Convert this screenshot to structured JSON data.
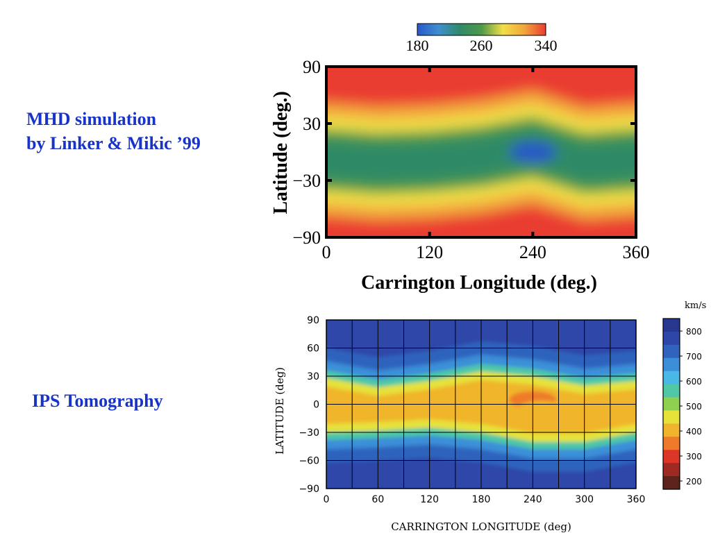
{
  "labels": {
    "mhd_line1": "MHD simulation",
    "mhd_line2": "by Linker & Mikic ’99",
    "ips": "IPS Tomography"
  },
  "chart_data": [
    {
      "type": "heatmap",
      "title": "",
      "xlabel": "Carrington Longitude (deg.)",
      "ylabel": "Latitude (deg.)",
      "xlim": [
        0,
        360
      ],
      "ylim": [
        -90,
        90
      ],
      "x_ticks": [
        0,
        120,
        240,
        360
      ],
      "y_ticks": [
        90,
        30,
        -30,
        -90
      ],
      "x_tick_labels": [
        "0",
        "120",
        "240",
        "360"
      ],
      "y_tick_labels": [
        "90",
        "30",
        "−30",
        "−90"
      ],
      "colorbar": {
        "position": "top",
        "ticks": [
          180,
          260,
          340
        ],
        "tick_labels": [
          "180",
          "260",
          "340"
        ],
        "colors": [
          "#2a57c9",
          "#3f8fcf",
          "#2f8a66",
          "#4e9a4a",
          "#f2df46",
          "#f2a53c",
          "#ea3d30"
        ]
      },
      "features": {
        "slow_belt_center_lat": [
          {
            "lon": 0,
            "lat": -8
          },
          {
            "lon": 60,
            "lat": -12
          },
          {
            "lon": 120,
            "lat": -10
          },
          {
            "lon": 180,
            "lat": -5
          },
          {
            "lon": 240,
            "lat": 5
          },
          {
            "lon": 300,
            "lat": -12
          },
          {
            "lon": 360,
            "lat": -8
          }
        ],
        "minimum_spot": {
          "lon": 240,
          "lat": 0,
          "value": 180
        },
        "polar_value": 340
      },
      "grid": false
    },
    {
      "type": "heatmap",
      "title": "",
      "xlabel": "CARRINGTON LONGITUDE (deg)",
      "ylabel": "LATITUDE (deg)",
      "xlim": [
        0,
        360
      ],
      "ylim": [
        -90,
        90
      ],
      "x_ticks": [
        0,
        60,
        120,
        180,
        240,
        300,
        360
      ],
      "y_ticks": [
        90,
        60,
        30,
        0,
        -30,
        -60,
        -90
      ],
      "x_tick_labels": [
        "0",
        "60",
        "120",
        "180",
        "240",
        "300",
        "360"
      ],
      "y_tick_labels": [
        "90",
        "60",
        "30",
        "0",
        "−30",
        "−60",
        "−90"
      ],
      "grid": true,
      "colorbar": {
        "position": "right",
        "unit": "km/s",
        "tick_labels": [
          "800",
          "700",
          "600",
          "500",
          "400",
          "300",
          "200"
        ],
        "bands": [
          {
            "value": 800,
            "color": "#27368f"
          },
          {
            "value": 750,
            "color": "#2d46a8"
          },
          {
            "value": 700,
            "color": "#2f63bd"
          },
          {
            "value": 650,
            "color": "#3b8fd8"
          },
          {
            "value": 600,
            "color": "#49b8e6"
          },
          {
            "value": 550,
            "color": "#50c8a6"
          },
          {
            "value": 500,
            "color": "#8fd050"
          },
          {
            "value": 450,
            "color": "#e6e23a"
          },
          {
            "value": 400,
            "color": "#f0b52c"
          },
          {
            "value": 350,
            "color": "#ee7a2a"
          },
          {
            "value": 300,
            "color": "#dc3626"
          },
          {
            "value": 250,
            "color": "#9e2a22"
          },
          {
            "value": 200,
            "color": "#5c221b"
          }
        ]
      },
      "features": {
        "slow_belt": [
          {
            "lon": 0,
            "lat_min": -30,
            "lat_max": 28
          },
          {
            "lon": 60,
            "lat_min": -28,
            "lat_max": 18
          },
          {
            "lon": 120,
            "lat_min": -25,
            "lat_max": 25
          },
          {
            "lon": 180,
            "lat_min": -30,
            "lat_max": 35
          },
          {
            "lon": 240,
            "lat_min": -40,
            "lat_max": 30
          },
          {
            "lon": 300,
            "lat_min": -40,
            "lat_max": 20
          },
          {
            "lon": 360,
            "lat_min": -30,
            "lat_max": 25
          }
        ],
        "slow_spots": [
          {
            "lon": 240,
            "lat": 5,
            "value": 380
          },
          {
            "lon": 250,
            "lat": -5,
            "value": 400
          },
          {
            "lon": 340,
            "lat": -5,
            "value": 410
          }
        ]
      }
    }
  ]
}
